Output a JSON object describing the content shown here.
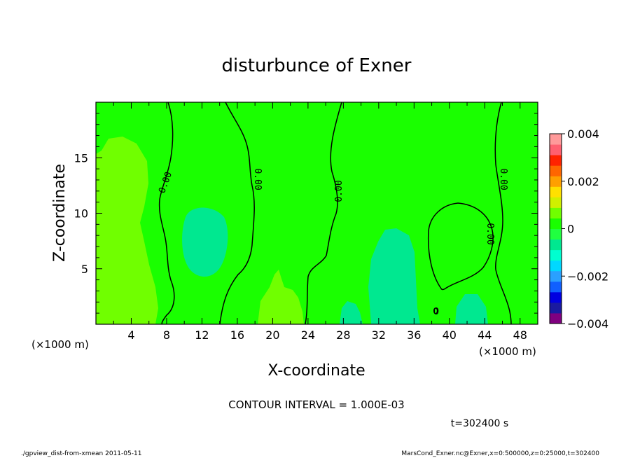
{
  "chart_data": {
    "type": "contour",
    "title": "disturbunce of Exner",
    "xlabel": "X-coordinate",
    "ylabel": "Z-coordinate",
    "x_unit": "(×1000 m)",
    "xlim": [
      0,
      50
    ],
    "ylim": [
      0,
      20
    ],
    "x_ticks": [
      4,
      8,
      12,
      16,
      20,
      24,
      28,
      32,
      36,
      40,
      44,
      48
    ],
    "y_ticks": [
      5,
      10,
      15
    ],
    "colorbar": {
      "range": [
        -0.004,
        0.004
      ],
      "tick_values": [
        0.004,
        0.002,
        0,
        -0.002,
        -0.004
      ],
      "tick_labels": [
        "0.004",
        "0.002",
        "0",
        "−0.002",
        "−0.004"
      ],
      "colors": [
        "#800080",
        "#1a1aa0",
        "#0000e0",
        "#1060ff",
        "#2aa0ff",
        "#00d8ff",
        "#00ffd0",
        "#00e890",
        "#20ff40",
        "#1aff00",
        "#70ff00",
        "#d0f000",
        "#ffe000",
        "#ffa000",
        "#ff6600",
        "#ff2200",
        "#ff6070",
        "#ff9a9a"
      ]
    },
    "contour_interval": "CONTOUR INTERVAL = 1.000E-03",
    "contour_labels": [
      "0.00",
      "0.00",
      "0.00",
      "0.00",
      "0.00",
      "0"
    ],
    "time_label": "t=302400 s",
    "footer_left": "./gpview_dist-from-xmean  2011-05-11",
    "footer_right": "MarsCond_Exner.nc@Exner,x=0:500000,z=0:25000,t=302400",
    "colors": {
      "background_field": "#1aff00",
      "positive_field": "#70ff00",
      "negative_field": "#00e890",
      "contour_line": "#000000"
    }
  }
}
